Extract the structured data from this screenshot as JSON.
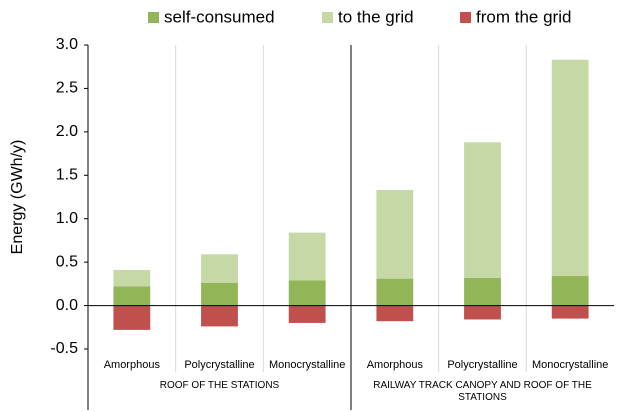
{
  "chart_data": {
    "type": "stacked-bar",
    "y_label": "Energy (GWh/y)",
    "groups": [
      {
        "name": "ROOF OF THE STATIONS",
        "categories": [
          "Amorphous",
          "Polycrystalline",
          "Monocrystalline"
        ]
      },
      {
        "name": "RAILWAY TRACK CANOPY AND ROOF OF THE STATIONS",
        "categories": [
          "Amorphous",
          "Polycrystalline",
          "Monocrystalline"
        ]
      }
    ],
    "series": [
      {
        "name": "self-consumed",
        "color": "#92b557",
        "values": [
          0.22,
          0.26,
          0.29,
          0.31,
          0.32,
          0.34
        ]
      },
      {
        "name": "to the grid",
        "color": "#c5d8a6",
        "values": [
          0.19,
          0.33,
          0.55,
          1.02,
          1.56,
          2.49
        ]
      },
      {
        "name": "from the grid",
        "color": "#c0504d",
        "values": [
          -0.28,
          -0.24,
          -0.2,
          -0.18,
          -0.16,
          -0.15
        ]
      }
    ],
    "ylim": [
      -0.5,
      3.0
    ],
    "yticks": [
      -0.5,
      {
        "value": 0,
        "label": "0.0"
      },
      0.5,
      {
        "value": 1,
        "label": "1.0"
      },
      1.5,
      {
        "value": 2,
        "label": "2.0"
      },
      2.5,
      {
        "value": 3,
        "label": "3.0"
      }
    ],
    "legend": "top"
  }
}
